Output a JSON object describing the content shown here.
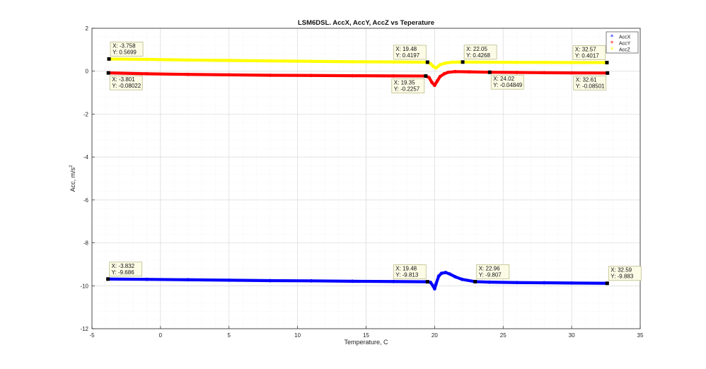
{
  "chart_data": {
    "type": "scatter",
    "title": "LSM6DSL. AccX, AccY, AccZ vs Teperature",
    "xlabel": "Temperature, C",
    "ylabel_base": "Acc, m/s",
    "ylabel_sup": "2",
    "xlim": [
      -5,
      35
    ],
    "ylim": [
      -12,
      2
    ],
    "xticks": [
      -5,
      0,
      5,
      10,
      15,
      20,
      25,
      30,
      35
    ],
    "yticks": [
      -12,
      -10,
      -8,
      -6,
      -4,
      -2,
      0,
      2
    ],
    "grid": true,
    "minor_grid": true,
    "legend_position": "top-right",
    "series": [
      {
        "name": "AccX",
        "color": "#0000ff",
        "marker": "*",
        "points": [
          [
            -3.832,
            -9.686
          ],
          [
            -1,
            -9.7
          ],
          [
            2,
            -9.72
          ],
          [
            5,
            -9.74
          ],
          [
            8,
            -9.76
          ],
          [
            11,
            -9.77
          ],
          [
            14,
            -9.79
          ],
          [
            17,
            -9.8
          ],
          [
            19.48,
            -9.813
          ],
          [
            19.7,
            -9.84
          ],
          [
            19.9,
            -10.02
          ],
          [
            20.0,
            -10.14
          ],
          [
            20.1,
            -9.92
          ],
          [
            20.3,
            -9.55
          ],
          [
            20.5,
            -9.42
          ],
          [
            20.8,
            -9.38
          ],
          [
            21.1,
            -9.45
          ],
          [
            21.5,
            -9.58
          ],
          [
            22.0,
            -9.7
          ],
          [
            22.96,
            -9.807
          ],
          [
            24,
            -9.83
          ],
          [
            26,
            -9.85
          ],
          [
            28,
            -9.86
          ],
          [
            30,
            -9.87
          ],
          [
            32.59,
            -9.883
          ]
        ]
      },
      {
        "name": "AccY",
        "color": "#ff0000",
        "marker": "*",
        "points": [
          [
            -3.801,
            -0.08022
          ],
          [
            -1,
            -0.12
          ],
          [
            2,
            -0.15
          ],
          [
            5,
            -0.17
          ],
          [
            8,
            -0.19
          ],
          [
            11,
            -0.2
          ],
          [
            14,
            -0.21
          ],
          [
            17,
            -0.22
          ],
          [
            19.35,
            -0.2257
          ],
          [
            19.6,
            -0.3
          ],
          [
            19.8,
            -0.52
          ],
          [
            20.0,
            -0.66
          ],
          [
            20.2,
            -0.45
          ],
          [
            20.4,
            -0.25
          ],
          [
            20.7,
            -0.12
          ],
          [
            21.0,
            -0.05
          ],
          [
            21.5,
            -0.02
          ],
          [
            22.5,
            -0.03
          ],
          [
            24.02,
            -0.04849
          ],
          [
            26,
            -0.06
          ],
          [
            28,
            -0.07
          ],
          [
            30,
            -0.08
          ],
          [
            32.61,
            -0.08501
          ]
        ]
      },
      {
        "name": "AccZ",
        "color": "#ffff00",
        "marker": "*",
        "points": [
          [
            -3.758,
            0.5699
          ],
          [
            -1,
            0.55
          ],
          [
            2,
            0.52
          ],
          [
            5,
            0.5
          ],
          [
            8,
            0.48
          ],
          [
            11,
            0.46
          ],
          [
            14,
            0.44
          ],
          [
            17,
            0.43
          ],
          [
            19.48,
            0.4197
          ],
          [
            19.7,
            0.35
          ],
          [
            19.9,
            0.22
          ],
          [
            20.1,
            0.15
          ],
          [
            20.4,
            0.3
          ],
          [
            20.8,
            0.38
          ],
          [
            21.3,
            0.42
          ],
          [
            22.05,
            0.4268
          ],
          [
            24,
            0.42
          ],
          [
            26,
            0.41
          ],
          [
            28,
            0.41
          ],
          [
            30,
            0.405
          ],
          [
            32.57,
            0.4017
          ]
        ]
      }
    ],
    "datatips": [
      {
        "x": -3.758,
        "y": 0.5699,
        "lines": [
          "X: -3.758",
          "Y: 0.5699"
        ],
        "pos": "above-right"
      },
      {
        "x": -3.801,
        "y": -0.08022,
        "lines": [
          "X: -3.801",
          "Y: -0.08022"
        ],
        "pos": "below-right"
      },
      {
        "x": 19.48,
        "y": 0.4197,
        "lines": [
          "X: 19.48",
          "Y: 0.4197"
        ],
        "pos": "above-left"
      },
      {
        "x": 19.35,
        "y": -0.2257,
        "lines": [
          "X: 19.35",
          "Y: -0.2257"
        ],
        "pos": "below-left"
      },
      {
        "x": 22.05,
        "y": 0.4268,
        "lines": [
          "X: 22.05",
          "Y: 0.4268"
        ],
        "pos": "above-right"
      },
      {
        "x": 24.02,
        "y": -0.04849,
        "lines": [
          "X: 24.02",
          "Y: -0.04849"
        ],
        "pos": "below-right"
      },
      {
        "x": 32.57,
        "y": 0.4017,
        "lines": [
          "X: 32.57",
          "Y: 0.4017"
        ],
        "pos": "above-left"
      },
      {
        "x": 32.61,
        "y": -0.08501,
        "lines": [
          "X: 32.61",
          "Y: -0.08501"
        ],
        "pos": "below-left"
      },
      {
        "x": -3.832,
        "y": -9.686,
        "lines": [
          "X: -3.832",
          "Y: -9.686"
        ],
        "pos": "above-right"
      },
      {
        "x": 19.48,
        "y": -9.813,
        "lines": [
          "X: 19.48",
          "Y: -9.813"
        ],
        "pos": "above-left"
      },
      {
        "x": 22.96,
        "y": -9.807,
        "lines": [
          "X: 22.96",
          "Y: -9.807"
        ],
        "pos": "above-right"
      },
      {
        "x": 32.59,
        "y": -9.883,
        "lines": [
          "X: 32.59",
          "Y: -9.883"
        ],
        "pos": "above-right"
      }
    ]
  }
}
